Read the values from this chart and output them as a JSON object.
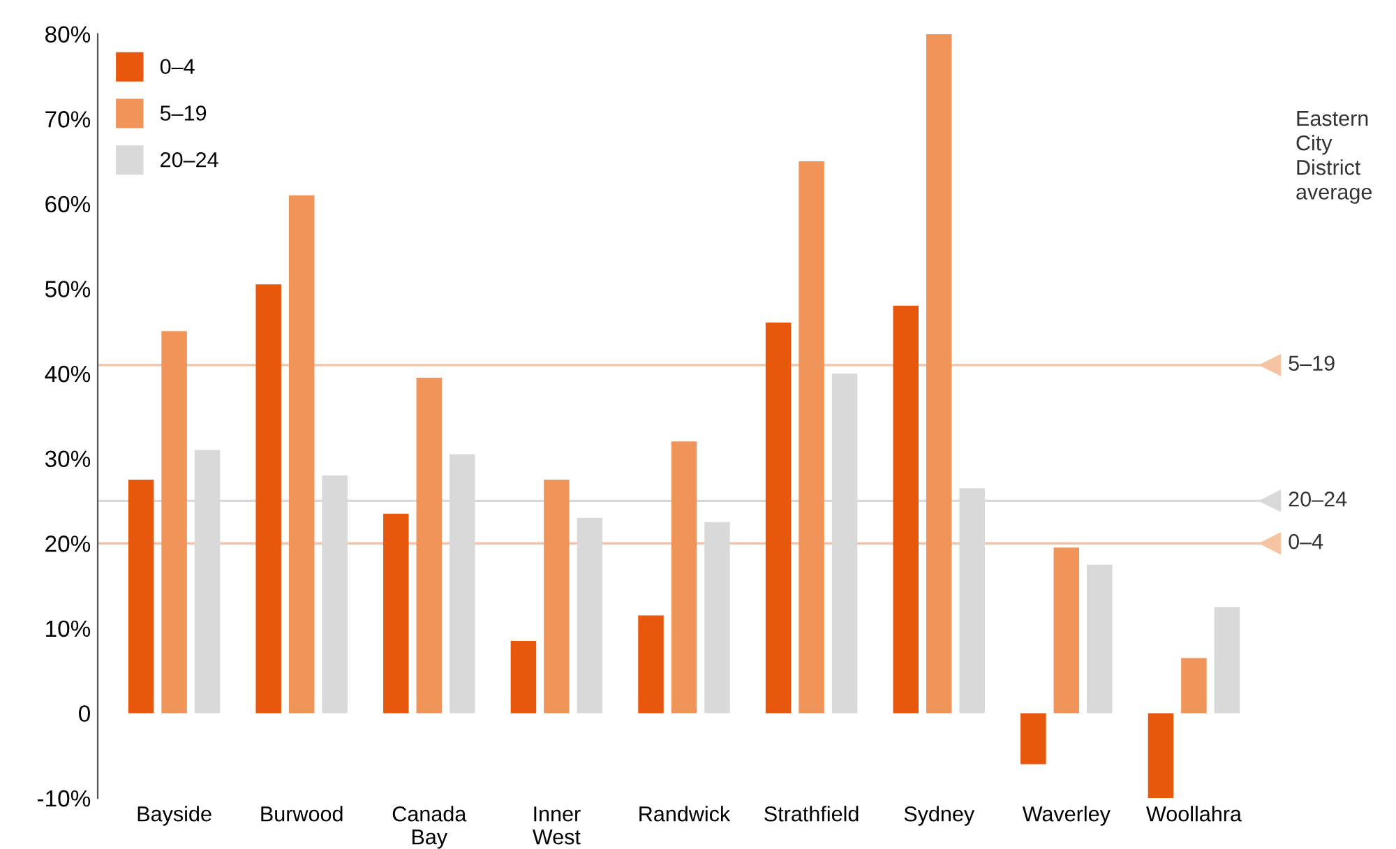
{
  "chart_data": {
    "type": "bar",
    "categories": [
      "Bayside",
      "Burwood",
      "Canada\nBay",
      "Inner\nWest",
      "Randwick",
      "Strathfield",
      "Sydney",
      "Waverley",
      "Woollahra"
    ],
    "series": [
      {
        "name": "0–4",
        "color": "#e8580c",
        "values": [
          27.5,
          50.5,
          23.5,
          8.5,
          11.5,
          46,
          48,
          -6,
          -10
        ]
      },
      {
        "name": "5–19",
        "color": "#f0945a",
        "values": [
          45,
          61,
          39.5,
          27.5,
          32,
          65,
          80,
          19.5,
          6.5
        ]
      },
      {
        "name": "20–24",
        "color": "#d9d9d9",
        "values": [
          31,
          28,
          30.5,
          23,
          22.5,
          40,
          26.5,
          17.5,
          12.5
        ]
      }
    ],
    "ylim": [
      -10,
      80
    ],
    "yticks": [
      {
        "value": -10,
        "label": "-10%"
      },
      0,
      {
        "value": 10,
        "label": "10%"
      },
      {
        "value": 20,
        "label": "20%"
      },
      {
        "value": 30,
        "label": "30%"
      },
      {
        "value": 40,
        "label": "40%"
      },
      {
        "value": 50,
        "label": "50%"
      },
      {
        "value": 60,
        "label": "60%"
      },
      {
        "value": 70,
        "label": "70%"
      },
      {
        "value": 80,
        "label": "80%"
      }
    ],
    "ref_lines": [
      {
        "axis": "y",
        "value": 41,
        "label": "5–19",
        "color": "#f6c3a3"
      },
      {
        "axis": "y",
        "value": 25,
        "label": "20–24",
        "color": "#d9d9d9"
      },
      {
        "axis": "y",
        "value": 20,
        "label": "0–4",
        "color": "#f6c3a3"
      }
    ],
    "annotations": [
      "Eastern City District average"
    ],
    "legend": "top left",
    "grid": false
  }
}
